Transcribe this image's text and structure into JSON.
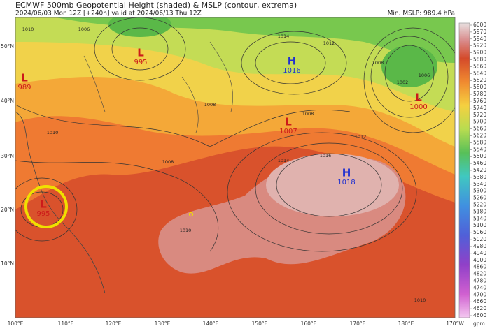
{
  "header": {
    "title": "ECMWF 500mb Geopotential Height (shaded) & MSLP (contour, extrema)",
    "subtitle": "2024/06/03 Mon 12Z [+240h] valid at 2024/06/13 Thu 12Z",
    "min_mslp": "Min. MSLP: 989.4 hPa"
  },
  "colorbar": {
    "unit": "gpm",
    "labels": [
      "6000",
      "5970",
      "5940",
      "5920",
      "5900",
      "5880",
      "5860",
      "5840",
      "5820",
      "5800",
      "5780",
      "5760",
      "5740",
      "5720",
      "5700",
      "5660",
      "5620",
      "5580",
      "5540",
      "5500",
      "5460",
      "5420",
      "5380",
      "5340",
      "5300",
      "5260",
      "5220",
      "5180",
      "5140",
      "5100",
      "5060",
      "5020",
      "4980",
      "4940",
      "4900",
      "4860",
      "4820",
      "4780",
      "4740",
      "4700",
      "4660",
      "4620",
      "4600"
    ]
  },
  "axes": {
    "lat_labels": [
      "50°N",
      "40°N",
      "30°N",
      "20°N",
      "10°N"
    ],
    "lon_labels": [
      "100°E",
      "110°E",
      "120°E",
      "130°E",
      "140°E",
      "150°E",
      "160°E",
      "170°E",
      "180°E",
      "170°W"
    ]
  },
  "extrema": [
    {
      "symbol": "L",
      "value": "995"
    },
    {
      "symbol": "L",
      "value": "989"
    },
    {
      "symbol": "H",
      "value": "1016"
    },
    {
      "symbol": "L",
      "value": "1000"
    },
    {
      "symbol": "L",
      "value": "1007"
    },
    {
      "symbol": "H",
      "value": "1018"
    },
    {
      "symbol": "L",
      "value": "995"
    }
  ],
  "contour_labels": [
    "1010",
    "1006",
    "1010",
    "1014",
    "1012",
    "1008",
    "1008",
    "1008",
    "1012",
    "1014",
    "1016",
    "1010",
    "1002",
    "1006",
    "1008",
    "1010"
  ]
}
